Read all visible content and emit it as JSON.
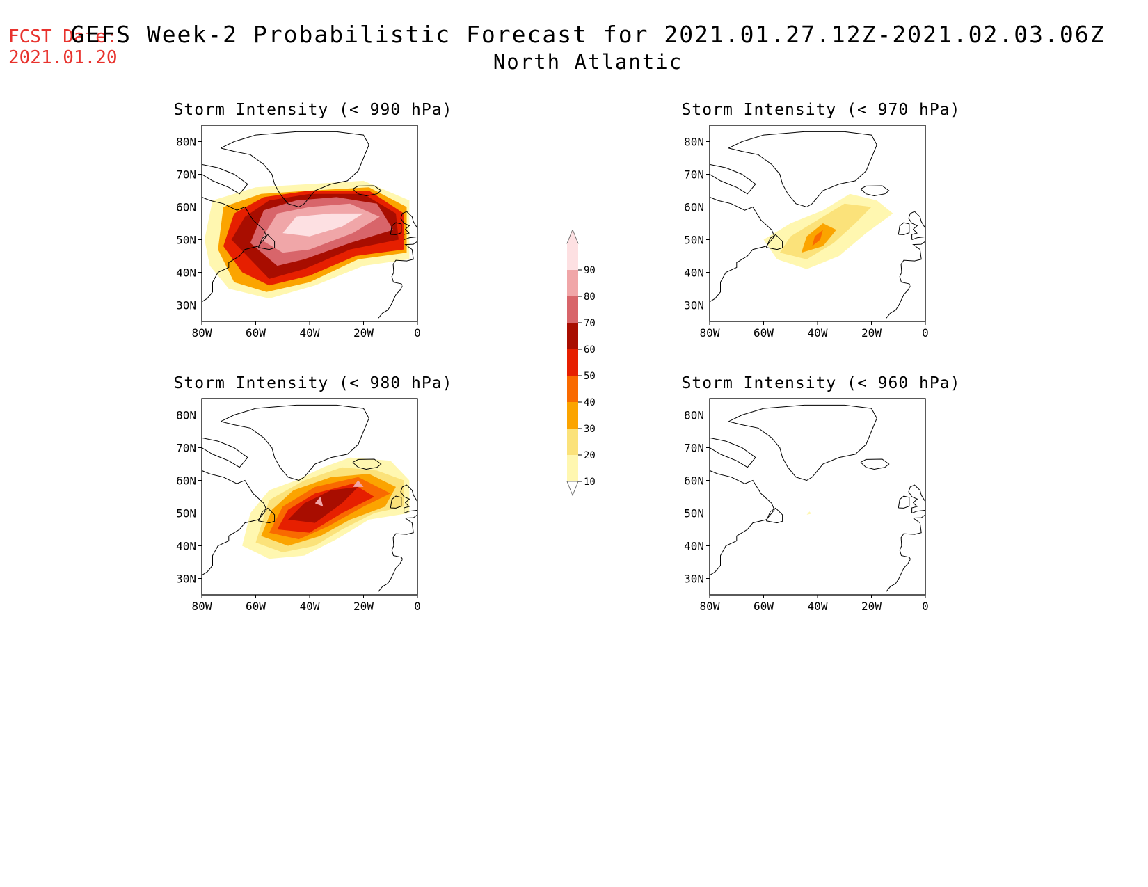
{
  "header": {
    "fcst_label": "FCST Date:",
    "fcst_date": "2021.01.20",
    "title": "GEFS Week-2 Probabilistic Forecast for 2021.01.27.12Z-2021.02.03.06Z",
    "region": "North Atlantic"
  },
  "axes": {
    "y_ticks": [
      "80N",
      "70N",
      "60N",
      "50N",
      "40N",
      "30N"
    ],
    "x_ticks": [
      "80W",
      "60W",
      "40W",
      "20W",
      "0"
    ]
  },
  "panels": [
    {
      "title": "Storm Intensity (< 990 hPa)"
    },
    {
      "title": "Storm Intensity (< 970 hPa)"
    },
    {
      "title": "Storm Intensity (< 980 hPa)"
    },
    {
      "title": "Storm Intensity (< 960 hPa)"
    }
  ],
  "colorbar": {
    "labels": [
      "10",
      "20",
      "30",
      "40",
      "50",
      "60",
      "70",
      "80",
      "90"
    ],
    "colors": [
      "#fff7b0",
      "#fbe27a",
      "#fba400",
      "#f96a00",
      "#e61f00",
      "#a80d00",
      "#d8656a",
      "#f0a6a8",
      "#fde0e2"
    ]
  },
  "map_data": {
    "lon_range": [
      -80,
      0
    ],
    "lat_range": [
      25,
      85
    ],
    "probability_fields": [
      {
        "panel": "Storm Intensity (< 990 hPa)",
        "max_probability": 90,
        "core_region": "Labrador Sea to British Isles"
      },
      {
        "panel": "Storm Intensity (< 970 hPa)",
        "max_probability": 40,
        "core_region": "near 40W 50N"
      },
      {
        "panel": "Storm Intensity (< 980 hPa)",
        "max_probability": 80,
        "core_region": "mid North Atlantic 40N-65N"
      },
      {
        "panel": "Storm Intensity (< 960 hPa)",
        "max_probability": 10,
        "core_region": "near 44W 50N"
      }
    ]
  }
}
